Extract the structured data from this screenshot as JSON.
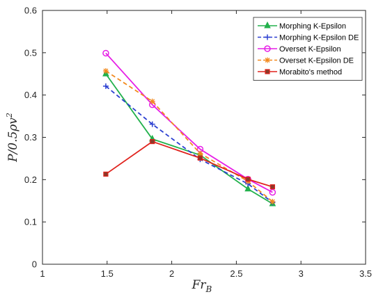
{
  "chart_data": {
    "type": "line",
    "xlabel": "Fr",
    "xlabel_sub": "B",
    "ylabel": "P/0.5ρv",
    "ylabel_sup": "2",
    "xlim": [
      1,
      3.5
    ],
    "ylim": [
      0,
      0.6
    ],
    "xticks": [
      1,
      1.5,
      2,
      2.5,
      3,
      3.5
    ],
    "yticks": [
      0,
      0.1,
      0.2,
      0.3,
      0.4,
      0.5,
      0.6
    ],
    "xtick_labels": [
      "1",
      "1.5",
      "2",
      "2.5",
      "3",
      "3.5"
    ],
    "ytick_labels": [
      "0",
      "0.1",
      "0.2",
      "0.3",
      "0.4",
      "0.5",
      "0.6"
    ],
    "grid": false,
    "legend_position": "top-right",
    "series": [
      {
        "name": "Morphing K-Epsilon",
        "color": "#22b14c",
        "dash": "solid",
        "marker": "triangle",
        "x": [
          1.49,
          1.85,
          2.22,
          2.59,
          2.78
        ],
        "y": [
          0.45,
          0.296,
          0.258,
          0.178,
          0.143
        ]
      },
      {
        "name": "Morphing K-Epsilon DE",
        "color": "#2b3fd1",
        "dash": "dashed",
        "marker": "plus",
        "x": [
          1.49,
          1.85,
          2.22,
          2.59,
          2.78
        ],
        "y": [
          0.421,
          0.331,
          0.248,
          0.19,
          0.146
        ]
      },
      {
        "name": "Overset K-Epsilon",
        "color": "#e61ee6",
        "dash": "solid",
        "marker": "circle",
        "x": [
          1.49,
          1.85,
          2.22,
          2.59,
          2.78
        ],
        "y": [
          0.499,
          0.377,
          0.272,
          0.201,
          0.17
        ]
      },
      {
        "name": "Overset K-Epsilon DE",
        "color": "#f28a1e",
        "dash": "dashed",
        "marker": "star",
        "x": [
          1.49,
          1.85,
          2.22,
          2.59,
          2.78
        ],
        "y": [
          0.457,
          0.385,
          0.262,
          0.196,
          0.148
        ]
      },
      {
        "name": "Morabito's method",
        "color": "#e0221c",
        "dash": "solid",
        "marker": "square",
        "x": [
          1.49,
          1.85,
          2.22,
          2.59,
          2.78
        ],
        "y": [
          0.213,
          0.29,
          0.251,
          0.201,
          0.183
        ]
      }
    ]
  }
}
